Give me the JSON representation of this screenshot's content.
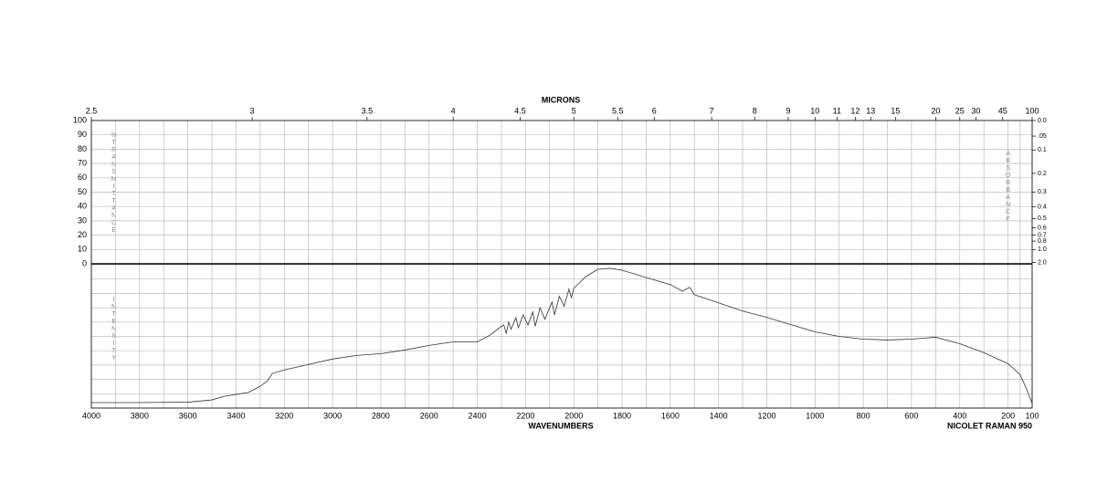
{
  "chart_data": {
    "type": "line",
    "x2_label": "MICRONS",
    "x_label": "WAVENUMBERS",
    "instrument": "NICOLET RAMAN 950",
    "y_label": "%TRANSMITTANCE",
    "y2_label": "ABSORBANCE",
    "lower_label": "INTENSITY",
    "color": "#333333",
    "grid": true,
    "xlim": [
      4000,
      100
    ],
    "xticks": [
      4000,
      3800,
      3600,
      3400,
      3200,
      3000,
      2800,
      2600,
      2400,
      2200,
      2000,
      1800,
      1600,
      1400,
      1200,
      1000,
      800,
      600,
      400,
      200,
      100
    ],
    "x2ticks": [
      2.5,
      3,
      3.5,
      4,
      4.5,
      5,
      5.5,
      6,
      7,
      8,
      9,
      10,
      11,
      12,
      13,
      15,
      20,
      25,
      30,
      45,
      100
    ],
    "ylim": [
      0,
      100
    ],
    "yticks": [
      100,
      90,
      80,
      70,
      60,
      50,
      40,
      30,
      20,
      10,
      0
    ],
    "y2ticks": [
      {
        "value": 0,
        "label": "0.0"
      },
      {
        "value": 0.05,
        "label": ".05"
      },
      {
        "value": 0.1,
        "label": "0.1"
      },
      {
        "value": 0.2,
        "label": "0.2"
      },
      {
        "value": 0.3,
        "label": "0.3"
      },
      {
        "value": 0.4,
        "label": "0.4"
      },
      {
        "value": 0.5,
        "label": "0.5"
      },
      {
        "value": 0.6,
        "label": "0.6"
      },
      {
        "value": 0.7,
        "label": "0.7"
      },
      {
        "value": 0.8,
        "label": "0.8"
      },
      {
        "value": 1.0,
        "label": "1.0"
      },
      {
        "value": 2.0,
        "label": "2.0"
      }
    ],
    "x": [
      4000,
      3800,
      3600,
      3500,
      3450,
      3400,
      3350,
      3300,
      3270,
      3250,
      3200,
      3100,
      3000,
      2900,
      2800,
      2700,
      2600,
      2500,
      2400,
      2350,
      2300,
      2290,
      2280,
      2270,
      2260,
      2240,
      2230,
      2210,
      2190,
      2170,
      2160,
      2140,
      2120,
      2090,
      2080,
      2060,
      2040,
      2020,
      2010,
      2000,
      1950,
      1900,
      1850,
      1800,
      1700,
      1600,
      1550,
      1520,
      1500,
      1400,
      1300,
      1200,
      1100,
      1000,
      900,
      800,
      700,
      600,
      500,
      400,
      300,
      200,
      150,
      120,
      100
    ],
    "values": [
      3.8,
      3.8,
      4.1,
      5.7,
      8.2,
      9.5,
      10.8,
      15.2,
      19.0,
      24.1,
      26.6,
      30.4,
      34.2,
      36.7,
      38.0,
      40.5,
      43.7,
      46.2,
      46.2,
      50.6,
      57.0,
      58,
      52,
      60,
      55,
      63,
      56,
      65,
      58,
      67,
      57,
      70,
      62,
      74,
      65,
      78,
      71,
      83,
      77,
      83.5,
      91.8,
      96.8,
      97.5,
      96.2,
      91.1,
      86.1,
      81.6,
      84.2,
      79.1,
      73.4,
      67.7,
      63.3,
      58.2,
      53.2,
      50.0,
      48.1,
      47.5,
      48.1,
      49.4,
      44.9,
      38.6,
      31.0,
      23.4,
      12.0,
      3.2
    ]
  }
}
